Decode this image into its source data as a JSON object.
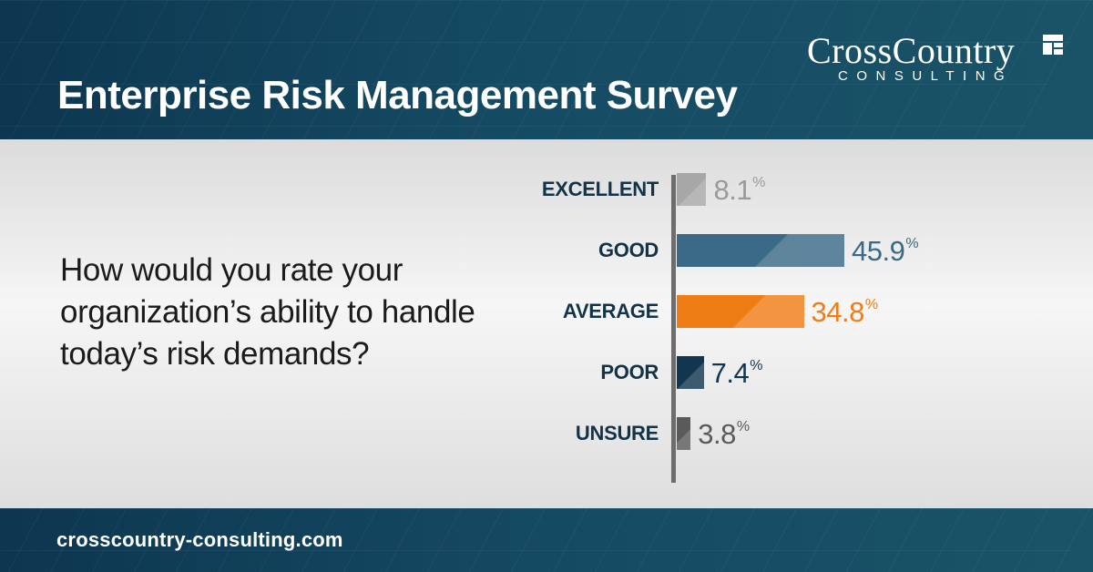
{
  "header": {
    "title": "Enterprise Risk Management Survey",
    "logo": {
      "main": "CrossCountry",
      "sub": "CONSULTING"
    }
  },
  "question": "How would you rate your organization’s ability to handle today’s risk demands?",
  "footer": {
    "url": "crosscountry-consulting.com"
  },
  "chart_data": {
    "type": "bar",
    "orientation": "horizontal",
    "categories": [
      "EXCELLENT",
      "GOOD",
      "AVERAGE",
      "POOR",
      "UNSURE"
    ],
    "values": [
      8.1,
      45.9,
      34.8,
      7.4,
      3.8
    ],
    "value_labels": [
      "8.1",
      "45.9",
      "34.8",
      "7.4",
      "3.8"
    ],
    "unit": "%",
    "colors": [
      "#a7a7a7",
      "#3a6a87",
      "#ef7d16",
      "#12364f",
      "#5a5a5a"
    ],
    "label_colors": [
      "#9a9a9a",
      "#3a6a87",
      "#ef7d16",
      "#12364f",
      "#5a5a5a"
    ],
    "title": "",
    "xlabel": "",
    "ylabel": "",
    "xlim": [
      0,
      50
    ],
    "grid": false,
    "legend": "none"
  }
}
